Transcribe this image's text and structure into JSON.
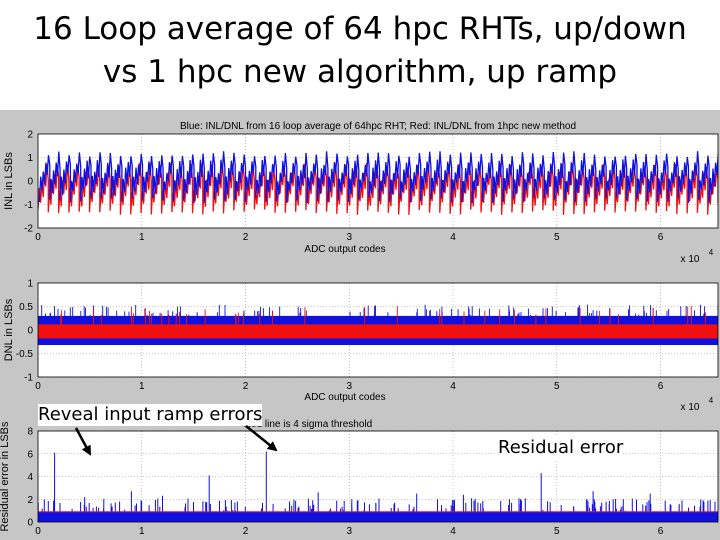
{
  "slide": {
    "title_line1": "16 Loop average of 64 hpc RHTs, up/down",
    "title_line2": "vs 1 hpc new algorithm, up ramp"
  },
  "annotations": {
    "reveal": "Reveal input ramp errors",
    "residual": "Residual error"
  },
  "colors": {
    "blue": "#1010e0",
    "red": "#f01010",
    "figure_bg": "#c6c6c6",
    "axes_bg": "#ffffff"
  },
  "chart_data": [
    {
      "type": "line",
      "title": "Blue: INL/DNL from 16 loop average of 64hpc RHT; Red: INL/DNL from 1hpc new method",
      "xlabel": "ADC output codes",
      "ylabel": "INL in LSBs",
      "x_multiplier": "x 10",
      "x_multiplier_exp": "4",
      "xlim": [
        0,
        65536
      ],
      "ylim": [
        -2,
        2
      ],
      "xticks": [
        0,
        1,
        2,
        3,
        4,
        5,
        6
      ],
      "yticks": [
        2,
        1,
        0,
        -1,
        -2
      ],
      "grid": true,
      "series": [
        {
          "color": "blue",
          "values": "sawtooth, about 66 periods, swinging roughly -0.6 to +1.0 LSB"
        },
        {
          "color": "red",
          "values": "sawtooth, about 66 periods, swinging roughly -1.0 to +0.6 LSB"
        }
      ]
    },
    {
      "type": "line",
      "title": "",
      "xlabel": "ADC output codes",
      "ylabel": "DNL in LSBs",
      "x_multiplier": "x 10",
      "x_multiplier_exp": "4",
      "xlim": [
        0,
        65536
      ],
      "ylim": [
        -1,
        1
      ],
      "xticks": [
        0,
        1,
        2,
        3,
        4,
        5,
        6
      ],
      "yticks": [
        1,
        0.5,
        0,
        -0.5,
        -1
      ],
      "grid": true,
      "series": [
        {
          "color": "blue",
          "values": "noise band about -0.3 to +0.3 LSB with spikes up to about +0.5"
        },
        {
          "color": "red",
          "values": "noise band about -0.2 to +0.1 LSB"
        }
      ]
    },
    {
      "type": "line",
      "title": "Red line is 4 sigma threshold",
      "xlabel": "",
      "ylabel": "Residual error in LSBs",
      "xlim": [
        0,
        65536
      ],
      "ylim": [
        0,
        8
      ],
      "xticks": [
        0,
        1,
        2,
        3,
        4,
        5,
        6
      ],
      "yticks": [
        8,
        6,
        4,
        2,
        0
      ],
      "grid": true,
      "threshold": 0.9,
      "series": [
        {
          "color": "blue",
          "values": "noise floor about 0 to 1 LSB with spikes; largest spikes near codes 1600 and 22000 at about 6 LSB, several at about 4 LSB"
        }
      ]
    }
  ]
}
